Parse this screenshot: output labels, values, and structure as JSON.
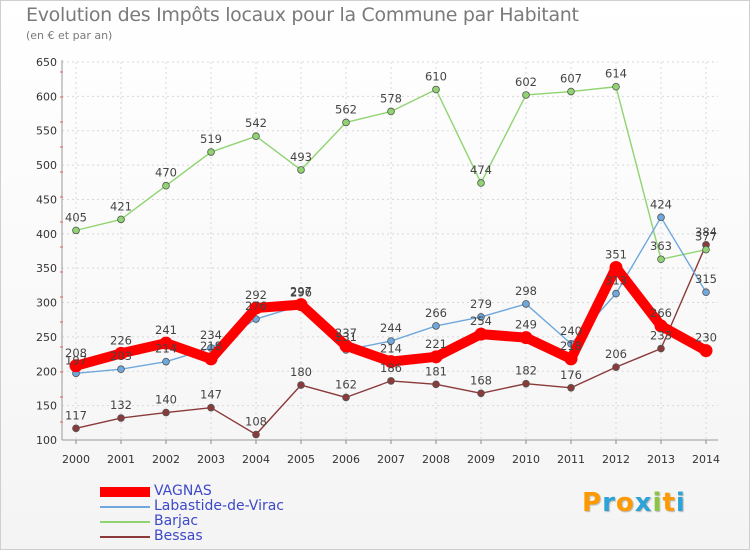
{
  "chart_data": {
    "type": "line",
    "title": "Evolution des Impôts locaux pour la Commune par Habitant",
    "subtitle": "(en € et par an)",
    "x": [
      "2000",
      "2001",
      "2002",
      "2003",
      "2004",
      "2005",
      "2006",
      "2007",
      "2008",
      "2009",
      "2010",
      "2011",
      "2012",
      "2013",
      "2014"
    ],
    "ylim": [
      100,
      650
    ],
    "yticks": [
      100,
      150,
      200,
      250,
      300,
      350,
      400,
      450,
      500,
      550,
      600,
      650
    ],
    "series": [
      {
        "name": "VAGNAS",
        "color": "#ff0000",
        "values": [
          208,
          226,
          241,
          218,
          292,
          297,
          237,
          214,
          221,
          254,
          249,
          218,
          351,
          266,
          230
        ],
        "labels": [
          "208",
          "226",
          "241",
          "218",
          "292",
          "297",
          "237",
          "214",
          "221",
          "254",
          "249",
          "218",
          "351",
          "266",
          "230"
        ]
      },
      {
        "name": "Labastide-de-Virac",
        "color": "#6fa8dc",
        "values": [
          197,
          203,
          214,
          234,
          276,
          296,
          231,
          244,
          266,
          279,
          298,
          240,
          313,
          424,
          315
        ],
        "labels": [
          "197",
          "203",
          "214",
          "234",
          "276",
          "296",
          "231",
          "244",
          "266",
          "279",
          "298",
          "240",
          "313",
          "424",
          "315"
        ]
      },
      {
        "name": "Barjac",
        "color": "#8fd470",
        "values": [
          405,
          421,
          470,
          519,
          542,
          493,
          562,
          578,
          610,
          474,
          602,
          607,
          614,
          363,
          377
        ],
        "labels": [
          "405",
          "421",
          "470",
          "519",
          "542",
          "493",
          "562",
          "578",
          "610",
          "474",
          "602",
          "607",
          "614",
          "363",
          "377"
        ]
      },
      {
        "name": "Bessas",
        "color": "#8b3a3a",
        "values": [
          117,
          132,
          140,
          147,
          108,
          180,
          162,
          186,
          181,
          168,
          182,
          176,
          206,
          233,
          384
        ],
        "labels": [
          "117",
          "132",
          "140",
          "147",
          "108",
          "180",
          "162",
          "186",
          "181",
          "168",
          "182",
          "176",
          "206",
          "233",
          "384"
        ]
      }
    ]
  },
  "logo": {
    "letters": [
      "P",
      "r",
      "o",
      "x",
      "i",
      "t",
      "i"
    ]
  },
  "colors": {
    "logo": [
      "#ff9900",
      "#2ea3d6",
      "#ff9900",
      "#2ea3d6",
      "#8cc63f",
      "#ff9900",
      "#2ea3d6"
    ]
  }
}
